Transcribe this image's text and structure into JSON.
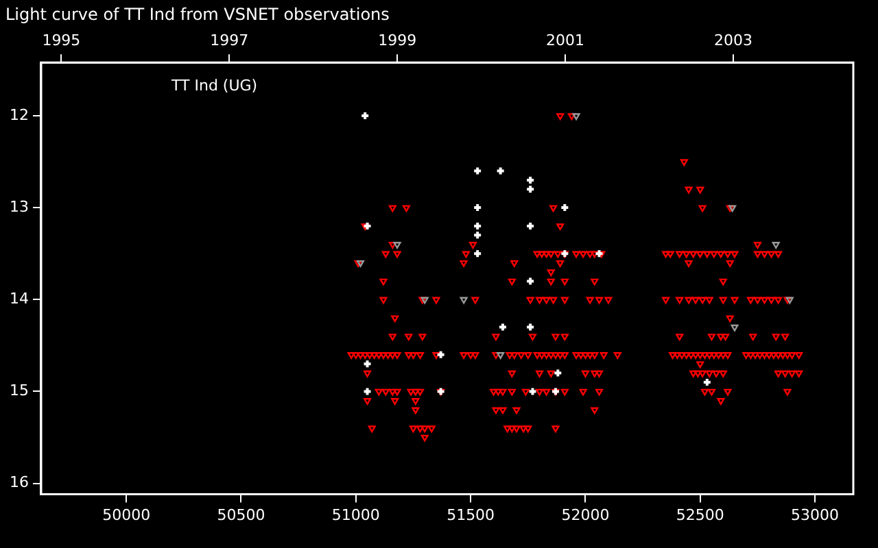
{
  "chart_data": {
    "type": "scatter",
    "title": "Light curve of TT Ind from VSNET observations",
    "annotations": [
      "TT Ind (UG)"
    ],
    "xlim": [
      49629,
      53167
    ],
    "xticks": [
      50000,
      50500,
      51000,
      51500,
      52000,
      52500,
      53000
    ],
    "x2lim": [
      1994.76,
      2004.43
    ],
    "x2ticks": [
      1995,
      1997,
      1999,
      2001,
      2003
    ],
    "ylim": [
      16.12,
      11.42
    ],
    "yticks": [
      12,
      13,
      14,
      15,
      16
    ],
    "grid": false,
    "legend": false,
    "series": [
      {
        "color": "#ff0000",
        "marker": "triangle",
        "x": [
          51890,
          51940,
          51160,
          51220,
          51860,
          51040,
          51890,
          51160,
          51510,
          51130,
          51180,
          51480,
          51790,
          51810,
          51830,
          51850,
          51880,
          51910,
          51960,
          51990,
          52020,
          52040,
          52070,
          51010,
          51470,
          51690,
          51890,
          51850,
          51120,
          51680,
          51850,
          51910,
          52040,
          51120,
          51290,
          51350,
          51520,
          51760,
          51800,
          51830,
          51860,
          51910,
          52020,
          52060,
          52100,
          51170,
          51160,
          51230,
          51290,
          51610,
          51770,
          51870,
          51910,
          50980,
          51000,
          51020,
          51040,
          51060,
          51080,
          51100,
          51120,
          51140,
          51160,
          51180,
          51230,
          51250,
          51280,
          51350,
          51470,
          51500,
          51520,
          51610,
          51670,
          51690,
          51720,
          51750,
          51790,
          51810,
          51830,
          51850,
          51870,
          51890,
          51910,
          51960,
          51980,
          52000,
          52020,
          52040,
          52080,
          52140,
          51050,
          51680,
          51800,
          51850,
          52000,
          52040,
          52060,
          51100,
          51130,
          51160,
          51180,
          51240,
          51260,
          51280,
          51370,
          51600,
          51620,
          51640,
          51680,
          51740,
          51800,
          51830,
          51870,
          51910,
          51990,
          52060,
          51050,
          51170,
          51260,
          51260,
          51610,
          51640,
          51700,
          52040,
          51070,
          51250,
          51280,
          51300,
          51330,
          51660,
          51680,
          51700,
          51730,
          51750,
          51870,
          51300,
          52430,
          52450,
          52500,
          52510,
          52630,
          52750,
          52350,
          52370,
          52410,
          52440,
          52470,
          52500,
          52530,
          52560,
          52590,
          52620,
          52650,
          52750,
          52780,
          52810,
          52840,
          52450,
          52630,
          52600,
          52350,
          52410,
          52450,
          52480,
          52510,
          52540,
          52600,
          52650,
          52720,
          52750,
          52780,
          52810,
          52840,
          52880,
          52630,
          52410,
          52550,
          52590,
          52610,
          52730,
          52830,
          52870,
          52380,
          52400,
          52420,
          52440,
          52460,
          52480,
          52500,
          52520,
          52540,
          52560,
          52580,
          52600,
          52620,
          52700,
          52720,
          52740,
          52760,
          52780,
          52800,
          52820,
          52840,
          52860,
          52880,
          52900,
          52930,
          52500,
          52470,
          52490,
          52510,
          52540,
          52570,
          52600,
          52840,
          52870,
          52900,
          52930,
          52520,
          52550,
          52620,
          52880,
          52590
        ],
        "values": [
          12.0,
          12.0,
          13.0,
          13.0,
          13.0,
          13.2,
          13.2,
          13.4,
          13.4,
          13.5,
          13.5,
          13.5,
          13.5,
          13.5,
          13.5,
          13.5,
          13.5,
          13.5,
          13.5,
          13.5,
          13.5,
          13.5,
          13.5,
          13.6,
          13.6,
          13.6,
          13.6,
          13.7,
          13.8,
          13.8,
          13.8,
          13.8,
          13.8,
          14.0,
          14.0,
          14.0,
          14.0,
          14.0,
          14.0,
          14.0,
          14.0,
          14.0,
          14.0,
          14.0,
          14.0,
          14.2,
          14.4,
          14.4,
          14.4,
          14.4,
          14.4,
          14.4,
          14.4,
          14.6,
          14.6,
          14.6,
          14.6,
          14.6,
          14.6,
          14.6,
          14.6,
          14.6,
          14.6,
          14.6,
          14.6,
          14.6,
          14.6,
          14.6,
          14.6,
          14.6,
          14.6,
          14.6,
          14.6,
          14.6,
          14.6,
          14.6,
          14.6,
          14.6,
          14.6,
          14.6,
          14.6,
          14.6,
          14.6,
          14.6,
          14.6,
          14.6,
          14.6,
          14.6,
          14.6,
          14.6,
          14.8,
          14.8,
          14.8,
          14.8,
          14.8,
          14.8,
          14.8,
          15.0,
          15.0,
          15.0,
          15.0,
          15.0,
          15.0,
          15.0,
          15.0,
          15.0,
          15.0,
          15.0,
          15.0,
          15.0,
          15.0,
          15.0,
          15.0,
          15.0,
          15.0,
          15.0,
          15.1,
          15.1,
          15.1,
          15.2,
          15.2,
          15.2,
          15.2,
          15.2,
          15.4,
          15.4,
          15.4,
          15.4,
          15.4,
          15.4,
          15.4,
          15.4,
          15.4,
          15.4,
          15.4,
          15.5,
          12.5,
          12.8,
          12.8,
          13.0,
          13.0,
          13.4,
          13.5,
          13.5,
          13.5,
          13.5,
          13.5,
          13.5,
          13.5,
          13.5,
          13.5,
          13.5,
          13.5,
          13.5,
          13.5,
          13.5,
          13.5,
          13.6,
          13.6,
          13.8,
          14.0,
          14.0,
          14.0,
          14.0,
          14.0,
          14.0,
          14.0,
          14.0,
          14.0,
          14.0,
          14.0,
          14.0,
          14.0,
          14.0,
          14.2,
          14.4,
          14.4,
          14.4,
          14.4,
          14.4,
          14.4,
          14.4,
          14.6,
          14.6,
          14.6,
          14.6,
          14.6,
          14.6,
          14.6,
          14.6,
          14.6,
          14.6,
          14.6,
          14.6,
          14.6,
          14.6,
          14.6,
          14.6,
          14.6,
          14.6,
          14.6,
          14.6,
          14.6,
          14.6,
          14.6,
          14.6,
          14.6,
          14.7,
          14.8,
          14.8,
          14.8,
          14.8,
          14.8,
          14.8,
          14.8,
          14.8,
          14.8,
          14.8,
          15.0,
          15.0,
          15.0,
          15.0,
          15.1
        ]
      },
      {
        "color": "#9a9a9a",
        "marker": "triangle",
        "x": [
          51020,
          51180,
          51300,
          51960,
          51470,
          51630,
          52640,
          52650,
          52830,
          52890
        ],
        "values": [
          13.6,
          13.4,
          14.0,
          12.0,
          14.0,
          14.6,
          13.0,
          14.3,
          13.4,
          14.0
        ]
      },
      {
        "color": "#ffffff",
        "marker": "cross",
        "x": [
          51040,
          51530,
          51630,
          51760,
          51760,
          51530,
          51910,
          51050,
          51530,
          51760,
          51530,
          51530,
          51910,
          52060,
          51760,
          51640,
          51760,
          51370,
          51050,
          51880,
          51050,
          51370,
          51770,
          51870,
          52530
        ],
        "values": [
          12.0,
          12.6,
          12.6,
          12.7,
          12.8,
          13.0,
          13.0,
          13.2,
          13.2,
          13.2,
          13.3,
          13.5,
          13.5,
          13.5,
          13.8,
          14.3,
          14.3,
          14.6,
          14.7,
          14.8,
          15.0,
          15.0,
          15.0,
          15.0,
          14.9
        ]
      }
    ]
  }
}
